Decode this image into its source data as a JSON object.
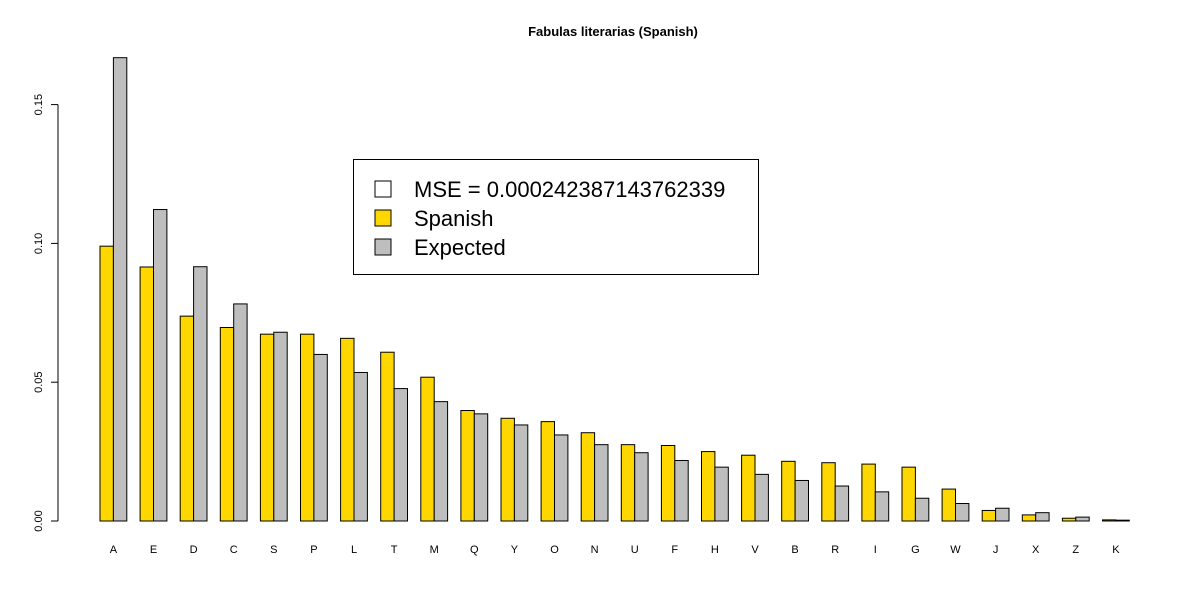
{
  "chart_data": {
    "type": "bar",
    "title": "Fabulas literarias (Spanish)",
    "xlabel": "",
    "ylabel": "",
    "ylim": [
      0,
      0.17
    ],
    "yticks": [
      0.0,
      0.05,
      0.1,
      0.15
    ],
    "ytick_labels": [
      "0.00",
      "0.05",
      "0.10",
      "0.15"
    ],
    "categories": [
      "A",
      "E",
      "D",
      "C",
      "S",
      "P",
      "L",
      "T",
      "M",
      "Q",
      "Y",
      "O",
      "N",
      "U",
      "F",
      "H",
      "V",
      "B",
      "R",
      "I",
      "G",
      "W",
      "J",
      "X",
      "Z",
      "K"
    ],
    "series": [
      {
        "name": "Spanish",
        "color": "#FFD700",
        "values": [
          0.099,
          0.0915,
          0.0738,
          0.0697,
          0.0673,
          0.0673,
          0.0658,
          0.0608,
          0.0518,
          0.0398,
          0.037,
          0.0358,
          0.0318,
          0.0275,
          0.0272,
          0.025,
          0.0237,
          0.0215,
          0.021,
          0.0205,
          0.0194,
          0.0115,
          0.0038,
          0.0022,
          0.001,
          0.0004
        ]
      },
      {
        "name": "Expected",
        "color": "#BEBEBE",
        "values": [
          0.1669,
          0.1122,
          0.0916,
          0.0782,
          0.068,
          0.06,
          0.0535,
          0.0477,
          0.043,
          0.0386,
          0.0346,
          0.031,
          0.0275,
          0.0246,
          0.0218,
          0.0194,
          0.0168,
          0.0146,
          0.0126,
          0.0105,
          0.0082,
          0.0063,
          0.0046,
          0.003,
          0.0014,
          0.0003
        ]
      }
    ],
    "legend": {
      "position": "top-center",
      "entries": [
        {
          "label": "MSE = 0.000242387143762339",
          "color": "#FFFFFF"
        },
        {
          "label": "Spanish",
          "color": "#FFD700"
        },
        {
          "label": "Expected",
          "color": "#BEBEBE"
        }
      ]
    },
    "grid": false
  }
}
